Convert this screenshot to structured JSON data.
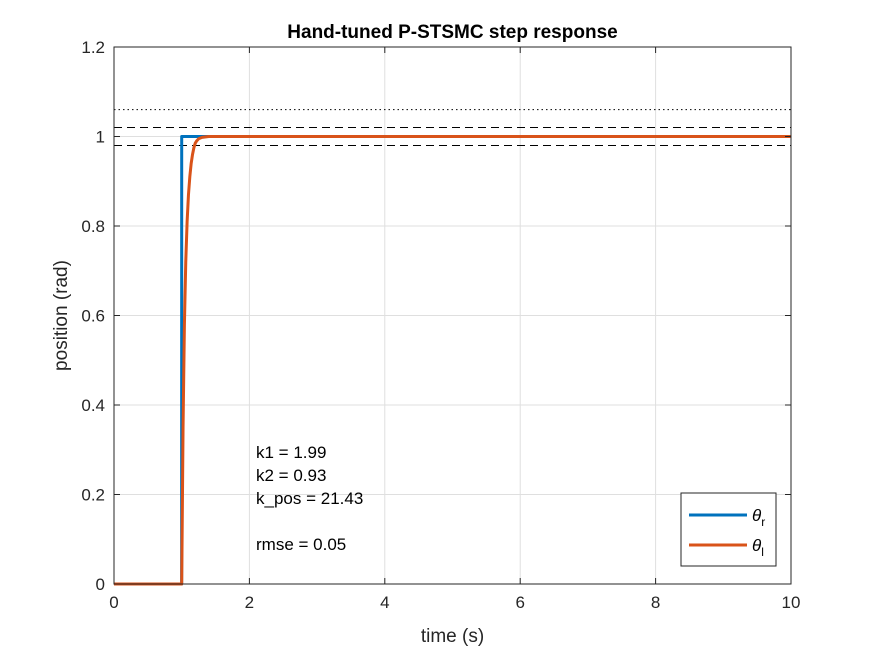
{
  "chart_data": {
    "type": "line",
    "title": "Hand-tuned P-STSMC step response",
    "xlabel": "time (s)",
    "ylabel": "position (rad)",
    "xlim": [
      0,
      10
    ],
    "ylim": [
      0,
      1.2
    ],
    "xticks": [
      0,
      2,
      4,
      6,
      8,
      10
    ],
    "yticks": [
      0,
      0.2,
      0.4,
      0.6,
      0.8,
      1,
      1.2
    ],
    "xtick_labels": [
      "0",
      "2",
      "4",
      "6",
      "8",
      "10"
    ],
    "ytick_labels": [
      "0",
      "0.2",
      "0.4",
      "0.6",
      "0.8",
      "1",
      "1.2"
    ],
    "grid": true,
    "legend_position": "bottom-right",
    "series": [
      {
        "name": "θ_r",
        "legend_symbol": "θ",
        "legend_sub": "r",
        "color": "#0072BD",
        "x": [
          0,
          0.999,
          1.0,
          10
        ],
        "y": [
          0,
          0,
          1,
          1
        ]
      },
      {
        "name": "θ_l",
        "legend_symbol": "θ",
        "legend_sub": "l",
        "color": "#D95319",
        "x": [
          0,
          1.0,
          1.02,
          1.04,
          1.06,
          1.08,
          1.1,
          1.12,
          1.14,
          1.16,
          1.18,
          1.2,
          1.22,
          1.25,
          1.3,
          1.4,
          1.6,
          2.0,
          10
        ],
        "y": [
          0,
          0,
          0.35,
          0.58,
          0.72,
          0.81,
          0.87,
          0.91,
          0.94,
          0.96,
          0.975,
          0.985,
          0.99,
          0.995,
          0.998,
          1.0,
          1.0,
          1.0,
          1.0
        ]
      }
    ],
    "reference_lines": [
      {
        "y": 1.06,
        "style": "dotted",
        "color": "#000000"
      },
      {
        "y": 1.02,
        "style": "dashed",
        "color": "#000000"
      },
      {
        "y": 0.98,
        "style": "dashed",
        "color": "#000000"
      }
    ],
    "annotations": [
      "k1 = 1.99",
      "k2 = 0.93",
      "k_pos = 21.43",
      "",
      "rmse = 0.05"
    ]
  }
}
